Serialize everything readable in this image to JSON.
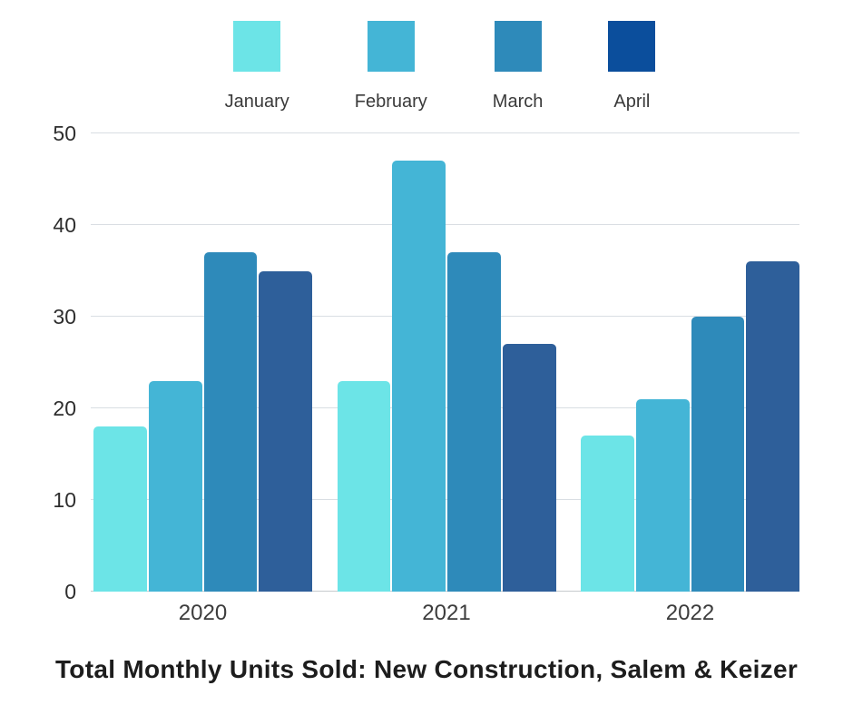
{
  "chart_data": {
    "type": "bar",
    "grouped": true,
    "title": "Total Monthly Units Sold: New Construction, Salem & Keizer",
    "xlabel": "",
    "ylabel": "",
    "categories": [
      "2020",
      "2021",
      "2022"
    ],
    "series": [
      {
        "name": "January",
        "bar_color": "#6ce4e7",
        "legend_color": "#6ce4e7",
        "values": [
          18,
          23,
          17
        ]
      },
      {
        "name": "February",
        "bar_color": "#44b5d6",
        "legend_color": "#44b5d6",
        "values": [
          23,
          47,
          21
        ]
      },
      {
        "name": "March",
        "bar_color": "#2e8aba",
        "legend_color": "#2e8aba",
        "values": [
          37,
          37,
          30
        ]
      },
      {
        "name": "April",
        "bar_color": "#2e5f9a",
        "legend_color": "#0b4e9c",
        "values": [
          35,
          27,
          36
        ]
      }
    ],
    "ylim": [
      0,
      50
    ],
    "yticks": [
      0,
      10,
      20,
      30,
      40,
      50
    ],
    "grid": true,
    "legend_position": "top",
    "colors": {
      "gridline": "#d9dee3",
      "baseline": "#c6cacd",
      "tick_label": "#2e2e2e",
      "legend_label": "#3a3a3a",
      "title": "#1d1d1d",
      "background": "#ffffff"
    }
  }
}
